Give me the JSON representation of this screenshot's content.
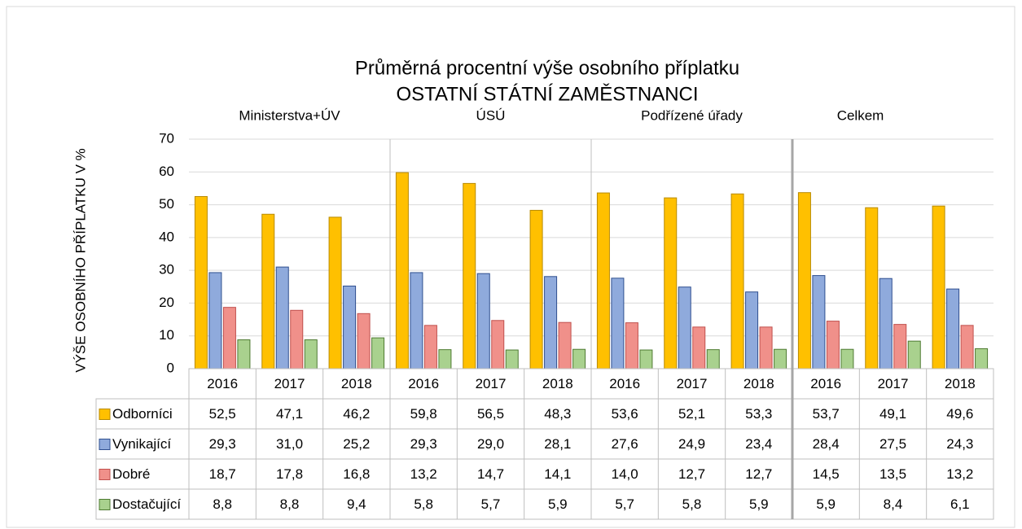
{
  "chart_data": {
    "type": "bar",
    "title": "Průměrná procentní výše osobního příplatku",
    "subtitle": "OSTATNÍ STÁTNÍ ZAMĚSTNANCI",
    "y_label": "VÝŠE OSOBNÍHO PŘÍPLATKU V %",
    "groups": [
      "Ministerstva+ÚV",
      "ÚSÚ",
      "Podřízené úřady",
      "Celkem"
    ],
    "categories": [
      "2016",
      "2017",
      "2018",
      "2016",
      "2017",
      "2018",
      "2016",
      "2017",
      "2018",
      "2016",
      "2017",
      "2018"
    ],
    "ylim": [
      0,
      70
    ],
    "yticks": [
      0,
      10,
      20,
      30,
      40,
      50,
      60,
      70
    ],
    "grid": true,
    "series": [
      {
        "name": "Odborníci",
        "color": "#ffc000",
        "stroke": "#b88a00",
        "values": [
          52.5,
          47.1,
          46.2,
          59.8,
          56.5,
          48.3,
          53.6,
          52.1,
          53.3,
          53.7,
          49.1,
          49.6
        ],
        "value_labels": [
          "52,5",
          "47,1",
          "46,2",
          "59,8",
          "56,5",
          "48,3",
          "53,6",
          "52,1",
          "53,3",
          "53,7",
          "49,1",
          "49,6"
        ]
      },
      {
        "name": "Vynikající",
        "color": "#8faadc",
        "stroke": "#2f4f8f",
        "values": [
          29.3,
          31.0,
          25.2,
          29.3,
          29.0,
          28.1,
          27.6,
          24.9,
          23.4,
          28.4,
          27.5,
          24.3
        ],
        "value_labels": [
          "29,3",
          "31,0",
          "25,2",
          "29,3",
          "29,0",
          "28,1",
          "27,6",
          "24,9",
          "23,4",
          "28,4",
          "27,5",
          "24,3"
        ]
      },
      {
        "name": "Dobré",
        "color": "#f0908a",
        "stroke": "#c0504d",
        "values": [
          18.7,
          17.8,
          16.8,
          13.2,
          14.7,
          14.1,
          14.0,
          12.7,
          12.7,
          14.5,
          13.5,
          13.2
        ],
        "value_labels": [
          "18,7",
          "17,8",
          "16,8",
          "13,2",
          "14,7",
          "14,1",
          "14,0",
          "12,7",
          "12,7",
          "14,5",
          "13,5",
          "13,2"
        ]
      },
      {
        "name": "Dostačující",
        "color": "#a9d18e",
        "stroke": "#4e7a32",
        "values": [
          8.8,
          8.8,
          9.4,
          5.8,
          5.7,
          5.9,
          5.7,
          5.8,
          5.9,
          5.9,
          8.4,
          6.1
        ],
        "value_labels": [
          "8,8",
          "8,8",
          "9,4",
          "5,8",
          "5,7",
          "5,9",
          "5,7",
          "5,8",
          "5,9",
          "5,9",
          "8,4",
          "6,1"
        ]
      }
    ]
  }
}
